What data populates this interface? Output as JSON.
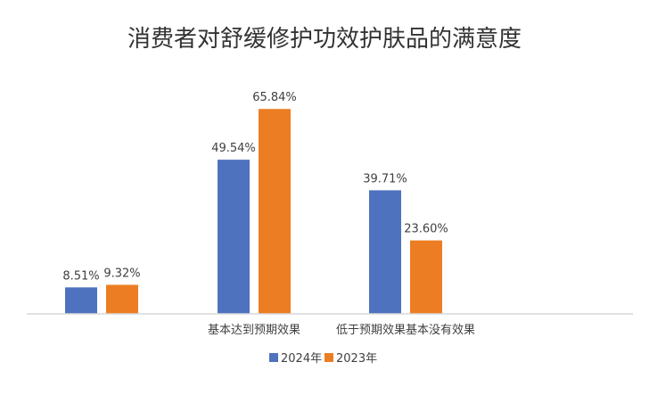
{
  "chart_data": {
    "type": "bar",
    "title": "消费者对舒缓修护功效护肤品的满意度",
    "categories": [
      "",
      "基本达到预期效果",
      "低于预期效果基本没有效果",
      ""
    ],
    "series": [
      {
        "name": "2024年",
        "color": "#4e72be",
        "values": [
          8.51,
          49.54,
          39.71,
          null
        ],
        "labels": [
          "8.51%",
          "49.54%",
          "39.71%",
          ""
        ]
      },
      {
        "name": "2023年",
        "color": "#ed7d22",
        "values": [
          9.32,
          65.84,
          23.6,
          null
        ],
        "labels": [
          "9.32%",
          "65.84%",
          "23.60%",
          ""
        ]
      }
    ],
    "ylim": [
      0,
      100
    ],
    "grid": false,
    "legend": "bottom",
    "xlabel": "",
    "ylabel": ""
  }
}
